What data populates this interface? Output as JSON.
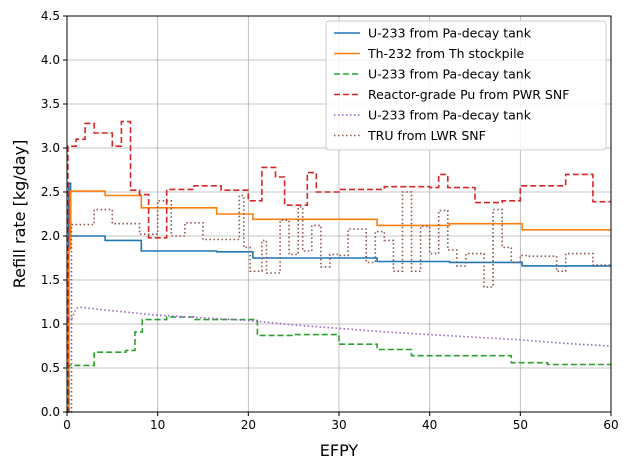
{
  "chart_data": {
    "type": "line",
    "xlabel": "EFPY",
    "ylabel": "Refill rate [kg/day]",
    "xlim": [
      0,
      60
    ],
    "ylim": [
      0,
      4.5
    ],
    "xticks": [
      "0",
      "10",
      "20",
      "30",
      "40",
      "50",
      "60"
    ],
    "yticks": [
      "0.0",
      "0.5",
      "1.0",
      "1.5",
      "2.0",
      "2.5",
      "3.0",
      "3.5",
      "4.0",
      "4.5"
    ],
    "grid": true,
    "legend_position": "top-right",
    "series": [
      {
        "name": "U-233 from Pa-decay tank",
        "color": "#1f77b4",
        "style": "solid",
        "step": true,
        "x": [
          0,
          0.2,
          0.4,
          4.2,
          8.2,
          16.5,
          20.5,
          34.2,
          42.2,
          50.2,
          60
        ],
        "y": [
          0,
          2.6,
          2.0,
          1.95,
          1.83,
          1.82,
          1.75,
          1.71,
          1.7,
          1.66,
          1.66
        ]
      },
      {
        "name": "Th-232 from Th stockpile",
        "color": "#ff7f0e",
        "style": "solid",
        "step": true,
        "x": [
          0,
          0.2,
          0.4,
          4.2,
          8.2,
          16.5,
          20.5,
          34.2,
          42.2,
          50.2,
          60
        ],
        "y": [
          0,
          1.85,
          2.51,
          2.46,
          2.32,
          2.25,
          2.19,
          2.12,
          2.14,
          2.07,
          2.07
        ]
      },
      {
        "name": "U-233 from Pa-decay tank",
        "color": "#2ca02c",
        "style": "dashed",
        "step": true,
        "x": [
          0,
          0.2,
          3.0,
          6.5,
          7.5,
          8.3,
          11,
          14,
          21,
          25,
          30,
          34.2,
          38,
          49,
          53,
          60
        ],
        "y": [
          0,
          0.53,
          0.68,
          0.7,
          0.91,
          1.05,
          1.08,
          1.05,
          0.87,
          0.88,
          0.77,
          0.71,
          0.64,
          0.56,
          0.54,
          0.54
        ]
      },
      {
        "name": "Reactor-grade Pu from PWR SNF",
        "color": "#d62728",
        "style": "dashed",
        "step": true,
        "x": [
          0,
          0.1,
          1.0,
          2.0,
          3.0,
          5.0,
          6.0,
          7.0,
          8.0,
          9.0,
          11.0,
          14.0,
          17.0,
          20.0,
          21.5,
          23.0,
          24.0,
          26.5,
          27.5,
          30.0,
          35.0,
          40.0,
          41.0,
          42.0,
          45.0,
          48.0,
          50.0,
          54.0,
          55.0,
          58.0,
          60
        ],
        "y": [
          0,
          3.02,
          3.1,
          3.28,
          3.17,
          3.02,
          3.3,
          2.52,
          2.47,
          1.98,
          2.53,
          2.57,
          2.52,
          2.4,
          2.78,
          2.67,
          2.35,
          2.72,
          2.5,
          2.53,
          2.56,
          2.55,
          2.7,
          2.55,
          2.38,
          2.4,
          2.57,
          2.57,
          2.7,
          2.39,
          2.39
        ]
      },
      {
        "name": "U-233 from Pa-decay tank",
        "color": "#9467bd",
        "style": "dotted",
        "step": false,
        "x": [
          0,
          0.2,
          0.5,
          1.0,
          1.5,
          5,
          10,
          15,
          20,
          25,
          30,
          35,
          40,
          45,
          50,
          55,
          60
        ],
        "y": [
          1.03,
          1.07,
          1.05,
          1.18,
          1.19,
          1.15,
          1.1,
          1.07,
          1.04,
          0.99,
          0.95,
          0.91,
          0.88,
          0.85,
          0.82,
          0.78,
          0.75
        ]
      },
      {
        "name": "TRU from LWR SNF",
        "color": "#8c564b",
        "style": "dotted",
        "step": true,
        "x": [
          0,
          0.5,
          3.0,
          5.0,
          8.0,
          10.0,
          11.5,
          13.0,
          15.0,
          19.0,
          19.5,
          20.2,
          21.5,
          22.0,
          23.5,
          24.5,
          25.5,
          26.0,
          27.0,
          28.0,
          29.0,
          30.0,
          31.0,
          33.0,
          34.0,
          35.0,
          36.0,
          37.0,
          38.0,
          39.0,
          40.0,
          41.0,
          42.0,
          43.0,
          44.0,
          45.0,
          46.0,
          47.0,
          48.0,
          49.0,
          50.0,
          51.0,
          54.0,
          55.0,
          57.0,
          58.0,
          60
        ],
        "y": [
          0,
          2.13,
          2.3,
          2.14,
          2.02,
          2.4,
          2.0,
          2.15,
          1.96,
          2.46,
          1.87,
          1.6,
          1.95,
          1.58,
          2.18,
          1.79,
          2.33,
          1.83,
          2.12,
          1.65,
          1.79,
          1.78,
          2.08,
          1.7,
          2.05,
          1.95,
          1.6,
          2.5,
          1.6,
          2.11,
          1.8,
          2.29,
          1.84,
          1.66,
          1.8,
          1.8,
          1.42,
          2.3,
          1.87,
          1.7,
          1.78,
          1.77,
          1.6,
          1.8,
          1.8,
          1.67,
          1.67
        ]
      }
    ]
  }
}
